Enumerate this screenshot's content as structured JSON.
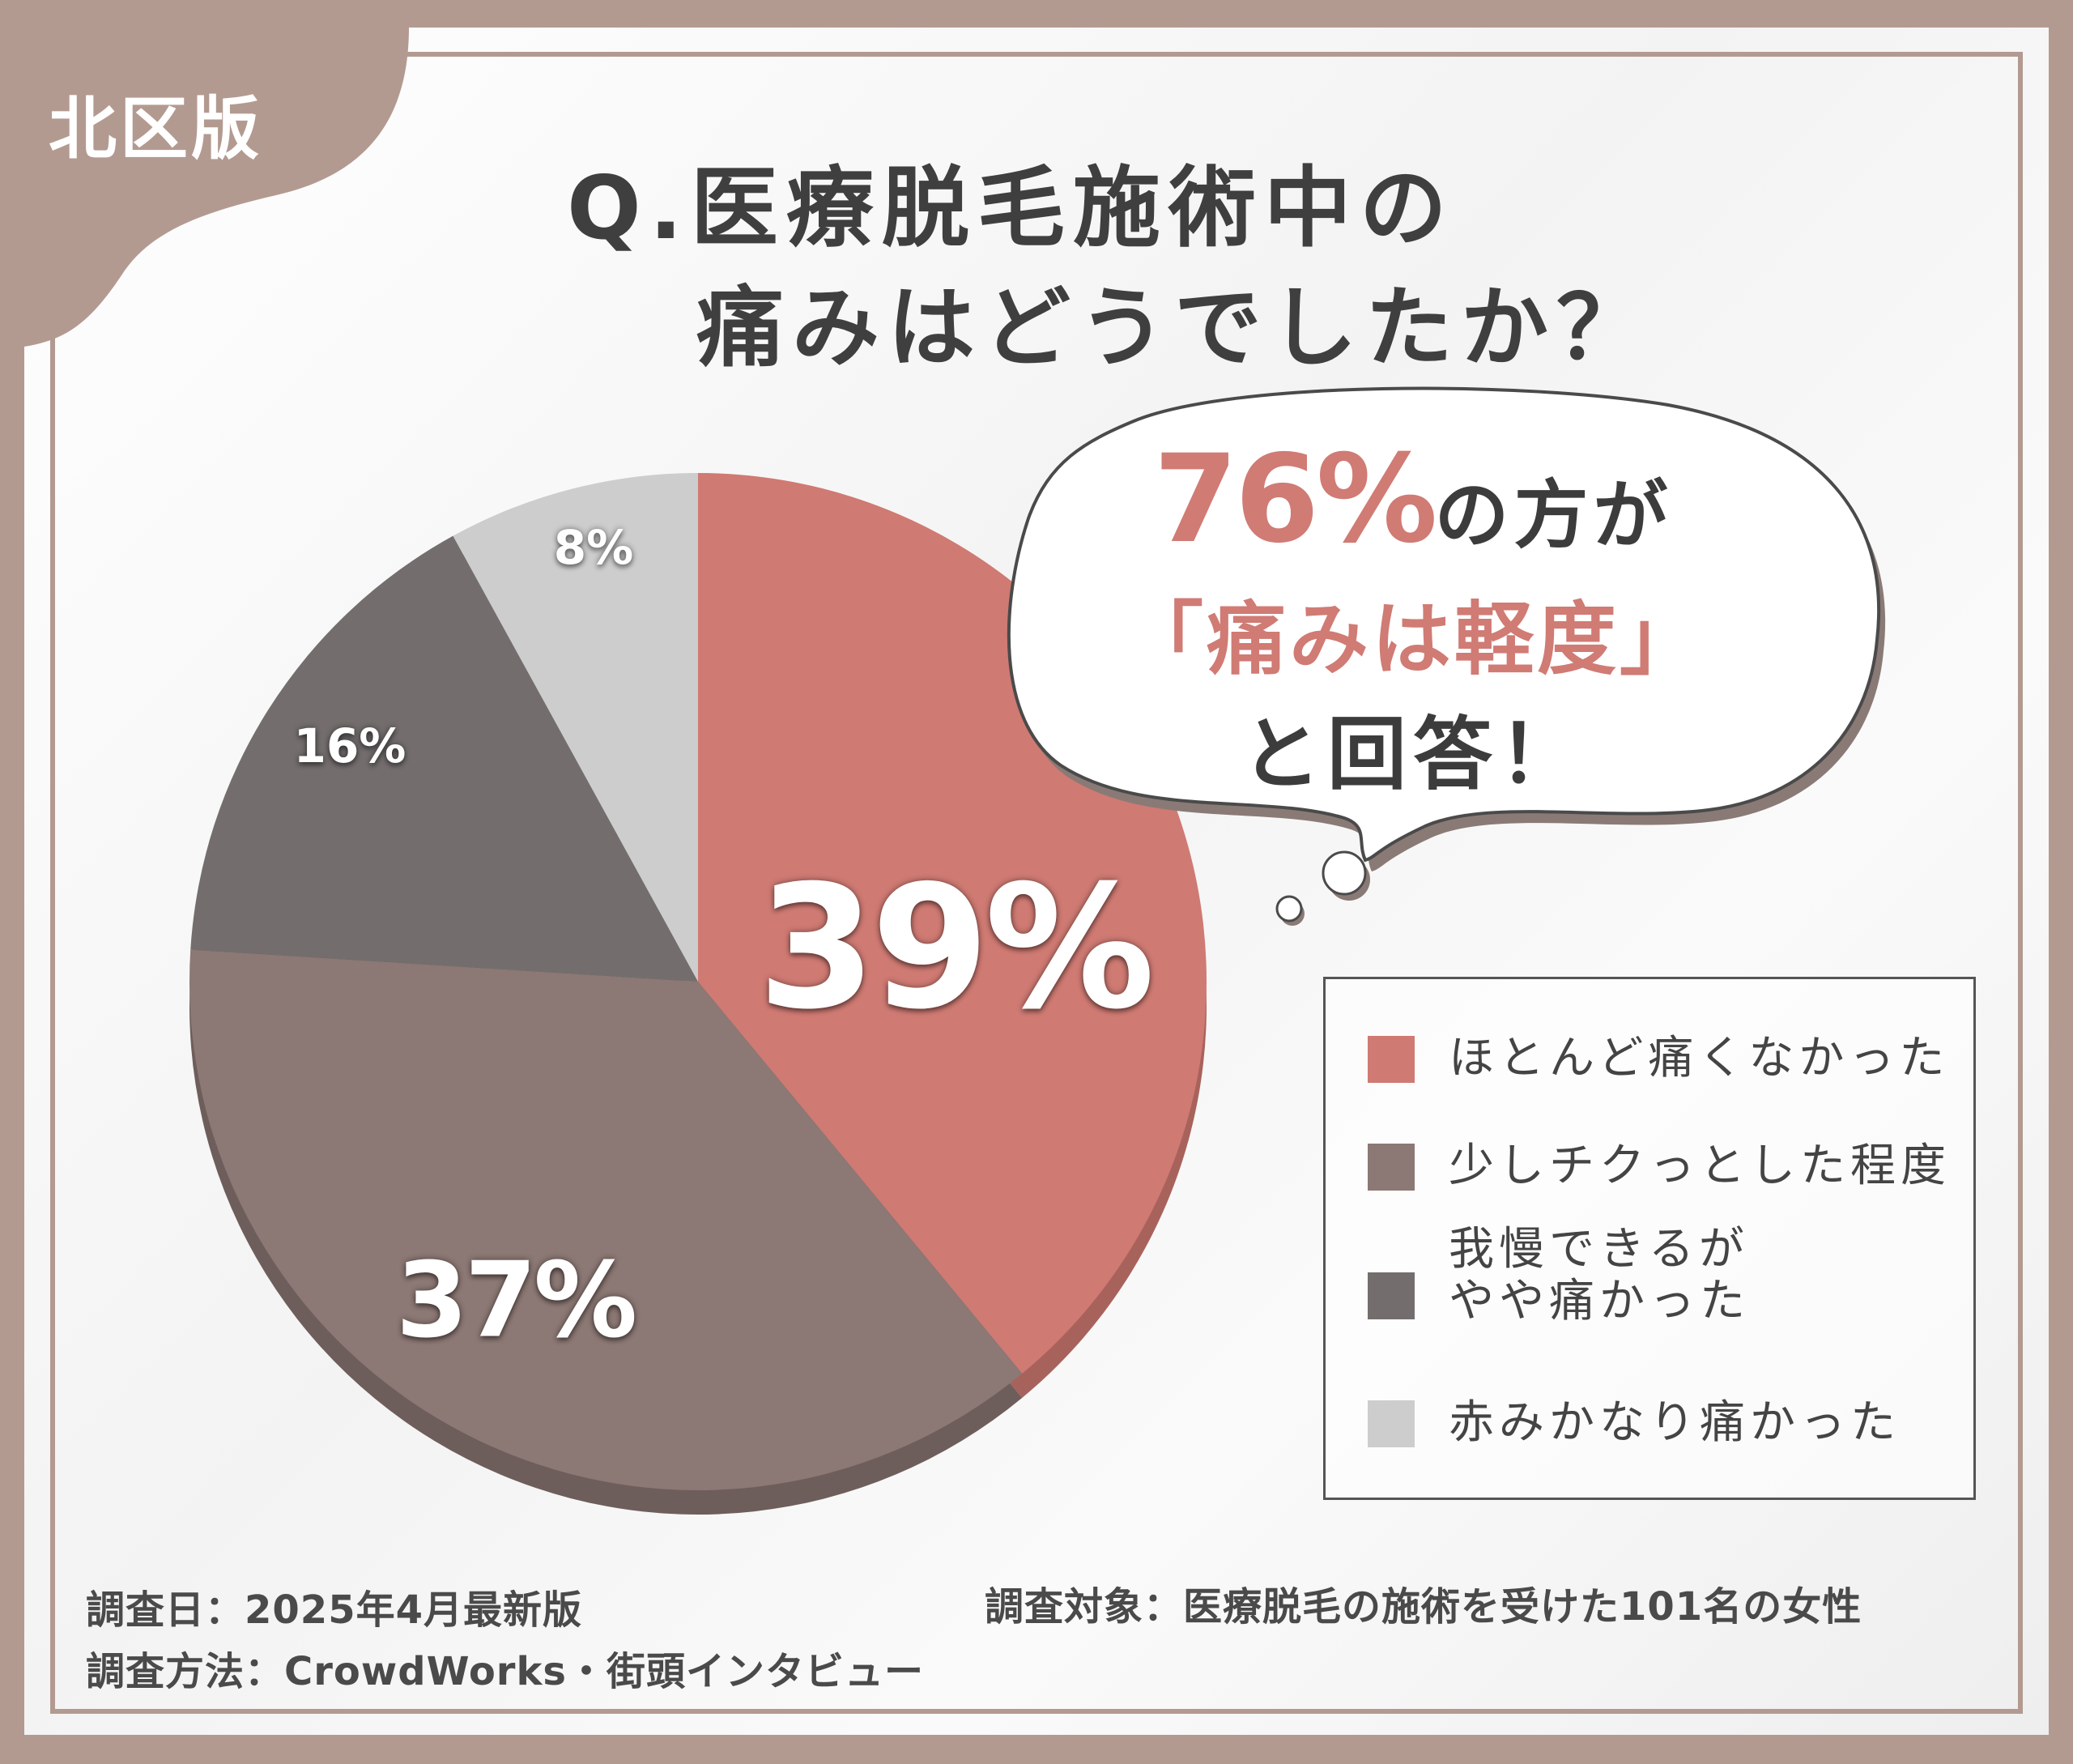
{
  "region_badge": "北区版",
  "title": {
    "line1": "Q.医療脱毛施術中の",
    "line2": "痛みはどうでしたか？"
  },
  "callout": {
    "percent": "76%",
    "line1_rest": "の方が",
    "line2": "「痛みは軽度」",
    "line3": "と回答！"
  },
  "chart_data": {
    "type": "pie",
    "title": "Q.医療脱毛施術中の痛みはどうでしたか？",
    "categories": [
      "ほとんど痛くなかった",
      "少しチクっとした程度",
      "我慢できるがやや痛かった",
      "赤みかなり痛かった"
    ],
    "values": [
      39,
      37,
      16,
      8
    ],
    "value_labels": [
      "39%",
      "37%",
      "16%",
      "8%"
    ],
    "unit": "%",
    "colors": [
      "#cf7a73",
      "#8c7874",
      "#736e6d",
      "#cdcdcd"
    ],
    "edge_colors": [
      "#a8625c",
      "#6e5e5b",
      "#5a5554",
      "#a9a9a9"
    ],
    "start_angle_deg": 0,
    "direction": "clockwise",
    "legend_position": "right"
  },
  "legend": {
    "items": [
      {
        "line1": "ほとんど痛くなかった",
        "line2": ""
      },
      {
        "line1": "少しチクっとした程度",
        "line2": ""
      },
      {
        "line1": "我慢できるが",
        "line2": "やや痛かった"
      },
      {
        "line1": "赤みかなり痛かった",
        "line2": ""
      }
    ]
  },
  "footer": {
    "survey_date": "調査日：2025年4月最新版",
    "survey_method": "調査方法：CrowdWorks・街頭インタビュー",
    "survey_target": "調査対象：医療脱毛の施術を受けた101名の女性"
  },
  "colors": {
    "frame": "#b39a91",
    "accent": "#d07b74",
    "title_text": "#3f3f3f"
  }
}
